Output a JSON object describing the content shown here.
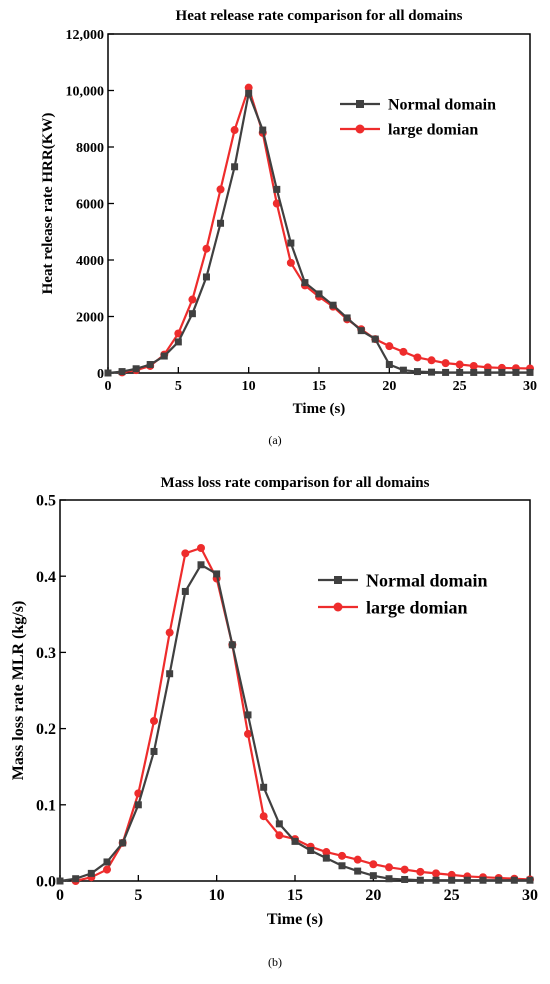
{
  "panels": [
    {
      "caption": "(a)",
      "chart_data": {
        "type": "line",
        "title": "Heat release rate comparison for all domains",
        "xlabel": "Time (s)",
        "ylabel": "Heat release rate HRR(KW)",
        "xlim": [
          0,
          30
        ],
        "ylim": [
          0,
          12000
        ],
        "xticks": [
          0,
          5,
          10,
          15,
          20,
          25,
          30
        ],
        "yticks": [
          0,
          2000,
          4000,
          6000,
          8000,
          10000,
          12000
        ],
        "ytick_labels": [
          "0",
          "2000",
          "4000",
          "6000",
          "8000",
          "10,000",
          "12,000"
        ],
        "grid": false,
        "legend_position": "top-right",
        "series": [
          {
            "name": "Normal domain",
            "color": "#404040",
            "marker": "square",
            "x": [
              0,
              1,
              2,
              3,
              4,
              5,
              6,
              7,
              8,
              9,
              10,
              11,
              12,
              13,
              14,
              15,
              16,
              17,
              18,
              19,
              20,
              21,
              22,
              23,
              24,
              25,
              26,
              27,
              28,
              29,
              30
            ],
            "values": [
              0,
              50,
              150,
              300,
              600,
              1100,
              2100,
              3400,
              5300,
              7300,
              9900,
              8600,
              6500,
              4600,
              3200,
              2800,
              2400,
              1950,
              1500,
              1200,
              300,
              100,
              50,
              30,
              20,
              20,
              20,
              20,
              20,
              20,
              20
            ]
          },
          {
            "name": "large domian",
            "color": "#ee2c2c",
            "marker": "circle",
            "x": [
              1,
              2,
              3,
              4,
              5,
              6,
              7,
              8,
              9,
              10,
              11,
              12,
              13,
              14,
              15,
              16,
              17,
              18,
              19,
              20,
              21,
              22,
              23,
              24,
              25,
              26,
              27,
              28,
              29,
              30
            ],
            "values": [
              20,
              100,
              250,
              650,
              1400,
              2600,
              4400,
              6500,
              8600,
              10100,
              8500,
              6000,
              3900,
              3100,
              2700,
              2350,
              1900,
              1550,
              1200,
              950,
              750,
              550,
              450,
              350,
              300,
              250,
              200,
              180,
              170,
              160
            ]
          }
        ]
      }
    },
    {
      "caption": "(b)",
      "chart_data": {
        "type": "line",
        "title": "Mass loss rate comparison for all domains",
        "xlabel": "Time (s)",
        "ylabel": "Mass loss rate MLR (kg/s)",
        "xlim": [
          0,
          30
        ],
        "ylim": [
          0,
          0.5
        ],
        "xticks": [
          0,
          5,
          10,
          15,
          20,
          25,
          30
        ],
        "yticks": [
          0,
          0.1,
          0.2,
          0.3,
          0.4,
          0.5
        ],
        "ytick_labels": [
          "0.0",
          "0.1",
          "0.2",
          "0.3",
          "0.4",
          "0.5"
        ],
        "grid": false,
        "legend_position": "top-right",
        "series": [
          {
            "name": "Normal domain",
            "color": "#404040",
            "marker": "square",
            "x": [
              0,
              1,
              2,
              3,
              4,
              5,
              6,
              7,
              8,
              9,
              10,
              11,
              12,
              13,
              14,
              15,
              16,
              17,
              18,
              19,
              20,
              21,
              22,
              23,
              24,
              25,
              26,
              27,
              28,
              29,
              30
            ],
            "values": [
              0.0,
              0.003,
              0.01,
              0.025,
              0.05,
              0.1,
              0.17,
              0.272,
              0.38,
              0.415,
              0.403,
              0.31,
              0.218,
              0.123,
              0.075,
              0.052,
              0.04,
              0.03,
              0.02,
              0.013,
              0.007,
              0.003,
              0.002,
              0.001,
              0.001,
              0.001,
              0.001,
              0.001,
              0.001,
              0.001,
              0.001
            ]
          },
          {
            "name": "large domian",
            "color": "#ee2c2c",
            "marker": "circle",
            "x": [
              1,
              2,
              3,
              4,
              5,
              6,
              7,
              8,
              9,
              10,
              11,
              12,
              13,
              14,
              15,
              16,
              17,
              18,
              19,
              20,
              21,
              22,
              23,
              24,
              25,
              26,
              27,
              28,
              29,
              30
            ],
            "values": [
              0.0,
              0.005,
              0.015,
              0.05,
              0.115,
              0.21,
              0.326,
              0.43,
              0.437,
              0.397,
              0.31,
              0.193,
              0.085,
              0.06,
              0.055,
              0.045,
              0.038,
              0.033,
              0.028,
              0.022,
              0.018,
              0.015,
              0.012,
              0.01,
              0.008,
              0.006,
              0.005,
              0.004,
              0.003,
              0.002
            ]
          }
        ]
      }
    }
  ]
}
